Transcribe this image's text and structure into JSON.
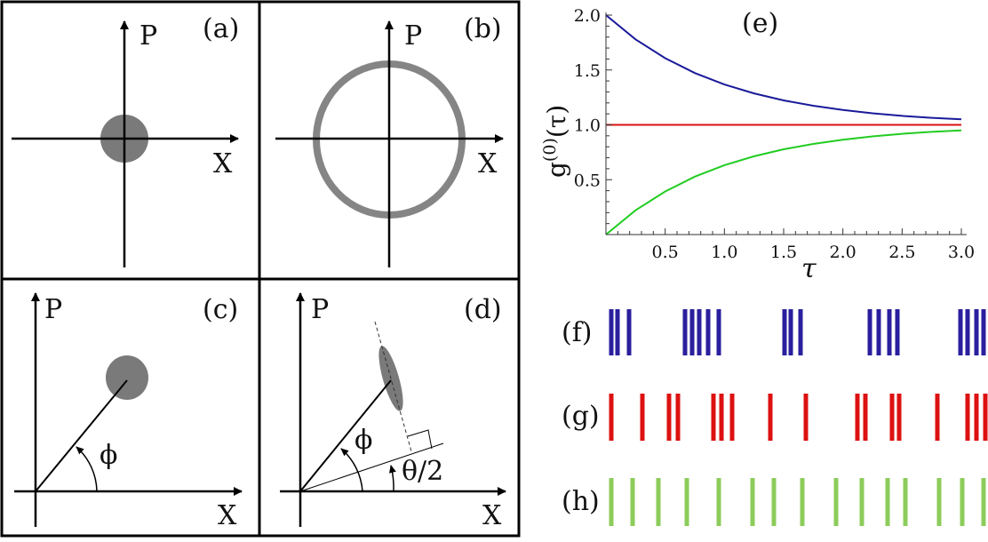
{
  "panels": {
    "a": {
      "label": "(a)",
      "x_axis": "X",
      "p_axis": "P"
    },
    "b": {
      "label": "(b)",
      "x_axis": "X",
      "p_axis": "P"
    },
    "c": {
      "label": "(c)",
      "x_axis": "X",
      "p_axis": "P",
      "angle": "ϕ"
    },
    "d": {
      "label": "(d)",
      "x_axis": "X",
      "p_axis": "P",
      "angle": "ϕ",
      "squeeze_angle": "θ/2"
    },
    "f": {
      "label": "(f)",
      "color": "#2a1f9e"
    },
    "g": {
      "label": "(g)",
      "color": "#dd1111"
    },
    "h": {
      "label": "(h)",
      "color": "#8ccc5a"
    }
  },
  "colors": {
    "phase_space_fill": "#7a7a7a",
    "ring": "#858585"
  },
  "chart_data": {
    "type": "line",
    "panel_label": "(e)",
    "xlabel": "τ",
    "ylabel": "g(0)(τ)",
    "xlim": [
      0,
      3.0
    ],
    "ylim": [
      0,
      2.0
    ],
    "xticks": [
      "0.5",
      "1.0",
      "1.5",
      "2.0",
      "2.5",
      "3.0"
    ],
    "yticks": [
      "0.5",
      "1.0",
      "1.5",
      "2.0"
    ],
    "grid": false,
    "x": [
      0,
      0.25,
      0.5,
      0.75,
      1.0,
      1.25,
      1.5,
      1.75,
      2.0,
      2.25,
      2.5,
      2.75,
      3.0
    ],
    "series": [
      {
        "color": "#1a1a9a",
        "values": [
          2.0,
          1.779,
          1.607,
          1.472,
          1.368,
          1.287,
          1.223,
          1.174,
          1.135,
          1.105,
          1.082,
          1.064,
          1.05
        ]
      },
      {
        "color": "#dd1111",
        "values": [
          1,
          1,
          1,
          1,
          1,
          1,
          1,
          1,
          1,
          1,
          1,
          1,
          1
        ]
      },
      {
        "color": "#22cc22",
        "values": [
          0.0,
          0.221,
          0.393,
          0.528,
          0.632,
          0.713,
          0.777,
          0.826,
          0.865,
          0.895,
          0.918,
          0.936,
          0.95
        ]
      }
    ]
  }
}
